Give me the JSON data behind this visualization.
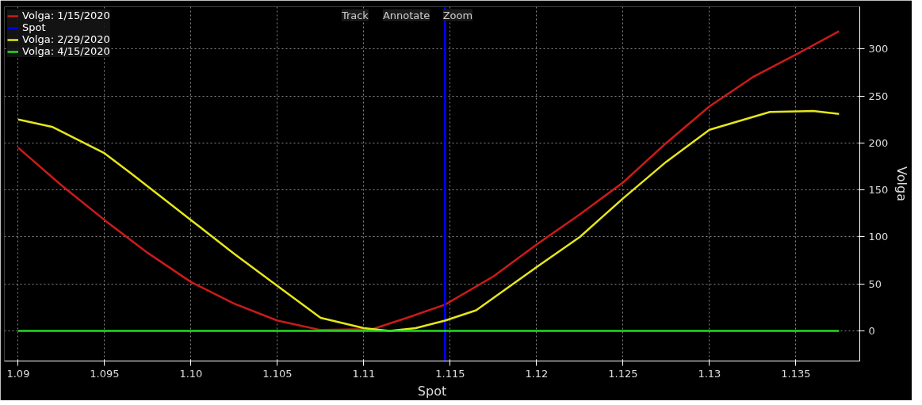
{
  "chart_data": {
    "type": "line",
    "xlabel": "Spot",
    "ylabel": "Volga",
    "xlim": [
      1.0892,
      1.1387
    ],
    "ylim": [
      -32,
      345
    ],
    "xticks": [
      1.09,
      1.095,
      {
        "value": 1.1,
        "label": "1.10"
      },
      1.105,
      1.11,
      1.115,
      1.12,
      1.125,
      1.13,
      1.135
    ],
    "yticks": [
      0,
      50,
      100,
      150,
      200,
      250,
      300
    ],
    "grid": true,
    "legend": "top left",
    "line_style": "solid",
    "marker": "none",
    "annotations": [
      "Track",
      "Annotate",
      "Zoom"
    ],
    "series": [
      {
        "name": "Volga: 1/15/2020",
        "color": "#cc1a1a",
        "x": [
          1.09,
          1.0925,
          1.095,
          1.0975,
          1.1,
          1.1025,
          1.105,
          1.1075,
          1.1105,
          1.1125,
          1.1147,
          1.1175,
          1.12,
          1.1225,
          1.125,
          1.1275,
          1.13,
          1.1325,
          1.135,
          1.1375
        ],
        "values": [
          195,
          155,
          118,
          83,
          52,
          29,
          11,
          1,
          2,
          14,
          28,
          58,
          92,
          124,
          158,
          200,
          239,
          270,
          294,
          319
        ]
      },
      {
        "name": "Spot",
        "color": "#0000ff",
        "x": [
          1.1147,
          1.1147
        ],
        "values": [
          -32,
          345
        ]
      },
      {
        "name": "Volga: 2/29/2020",
        "color": "#e6e619",
        "x": [
          1.09,
          1.092,
          1.095,
          1.0965,
          1.1,
          1.1025,
          1.105,
          1.1075,
          1.11,
          1.1115,
          1.113,
          1.1147,
          1.1165,
          1.12,
          1.1225,
          1.125,
          1.1275,
          1.13,
          1.1335,
          1.136,
          1.1375
        ],
        "values": [
          225,
          217,
          189,
          168,
          118,
          82,
          48,
          14,
          3,
          0,
          3,
          11,
          22,
          68,
          100,
          141,
          180,
          214,
          233,
          234,
          231
        ]
      },
      {
        "name": "Volga: 4/15/2020",
        "color": "#22dd22",
        "x": [
          1.09,
          1.1375
        ],
        "values": [
          0,
          0
        ]
      }
    ]
  }
}
